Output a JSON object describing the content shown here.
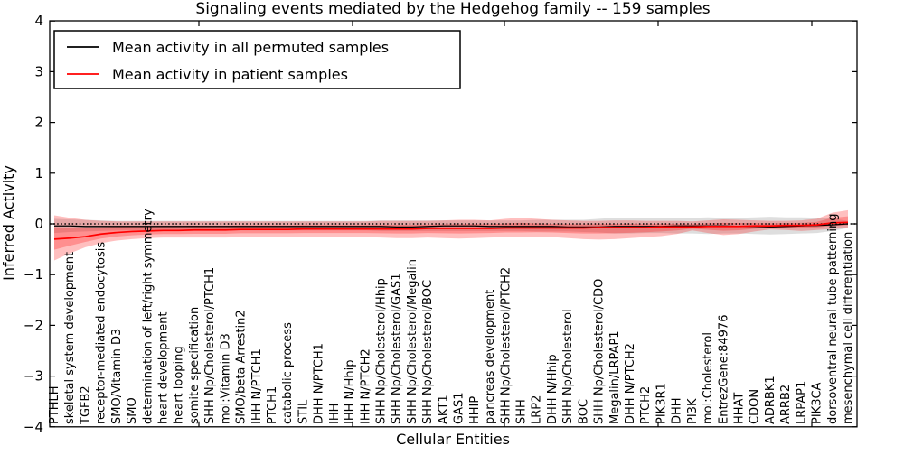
{
  "title": "Signaling events mediated by the Hedgehog family -- 159 samples",
  "axes": {
    "ylabel": "Inferred Activity",
    "xlabel": "Cellular Entities",
    "ytick_labels": [
      "4",
      "3",
      "2",
      "1",
      "0",
      "−1",
      "−2",
      "−3",
      "−4"
    ],
    "ytick_values": [
      4,
      3,
      2,
      1,
      0,
      -1,
      -2,
      -3,
      -4
    ]
  },
  "legend": {
    "items": [
      {
        "label": "Mean activity in all permuted samples",
        "color": "#000000"
      },
      {
        "label": "Mean activity in patient samples",
        "color": "#ff0000"
      }
    ]
  },
  "colors": {
    "patient_line": "#ff0000",
    "permuted_line": "#000000",
    "patient_band": "rgba(255,0,0,0.25)",
    "permuted_band": "rgba(0,0,0,0.13)",
    "zero_line": "#000000"
  },
  "chart_data": {
    "type": "line",
    "title": "Signaling events mediated by the Hedgehog family -- 159 samples",
    "xlabel": "Cellular Entities",
    "ylabel": "Inferred Activity",
    "ylim": [
      -4,
      4
    ],
    "grid": false,
    "legend_position": "upper left",
    "zero_reference_line": 0,
    "categories": [
      "PTHLH",
      "skeletal system development",
      "TGFB2",
      "receptor-mediated endocytosis",
      "SMO/Vitamin D3",
      "SMO",
      "determination of left/right symmetry",
      "heart development",
      "heart looping",
      "somite specification",
      "SHH Np/Cholesterol/PTCH1",
      "mol:Vitamin D3",
      "SMO/beta Arrestin2",
      "IHH N/PTCH1",
      "PTCH1",
      "catabolic process",
      "STIL",
      "DHH N/PTCH1",
      "IHH",
      "IHH N/Hhip",
      "IHH N/PTCH2",
      "SHH Np/Cholesterol/Hhip",
      "SHH Np/Cholesterol/GAS1",
      "SHH Np/Cholesterol/Megalin",
      "SHH Np/Cholesterol/BOC",
      "AKT1",
      "GAS1",
      "HHIP",
      "pancreas development",
      "SHH Np/Cholesterol/PTCH2",
      "SHH",
      "LRP2",
      "DHH N/Hhip",
      "SHH Np/Cholesterol",
      "BOC",
      "SHH Np/Cholesterol/CDO",
      "Megalin/LRPAP1",
      "DHH N/PTCH2",
      "PTCH2",
      "PIK3R1",
      "DHH",
      "PI3K",
      "mol:Cholesterol",
      "EntrezGene:84976",
      "HHAT",
      "CDON",
      "ADRBK1",
      "ARRB2",
      "LRPAP1",
      "PIK3CA",
      "dorsoventral neural tube patterning",
      "mesenchymal cell differentiation"
    ],
    "series": [
      {
        "name": "Mean activity in all permuted samples",
        "color": "#000000",
        "values": [
          -0.04,
          -0.04,
          -0.05,
          -0.05,
          -0.05,
          -0.05,
          -0.05,
          -0.05,
          -0.05,
          -0.05,
          -0.05,
          -0.05,
          -0.05,
          -0.05,
          -0.05,
          -0.05,
          -0.05,
          -0.05,
          -0.05,
          -0.05,
          -0.05,
          -0.05,
          -0.06,
          -0.06,
          -0.05,
          -0.04,
          -0.04,
          -0.04,
          -0.05,
          -0.05,
          -0.05,
          -0.05,
          -0.05,
          -0.06,
          -0.06,
          -0.06,
          -0.05,
          -0.05,
          -0.05,
          -0.05,
          -0.04,
          -0.04,
          -0.04,
          -0.04,
          -0.05,
          -0.05,
          -0.06,
          -0.05,
          -0.04,
          -0.03,
          -0.02,
          0.0
        ],
        "band_hi": [
          0.1,
          0.09,
          0.08,
          0.07,
          0.06,
          0.06,
          0.06,
          0.06,
          0.06,
          0.06,
          0.06,
          0.06,
          0.06,
          0.06,
          0.06,
          0.06,
          0.06,
          0.06,
          0.06,
          0.06,
          0.06,
          0.07,
          0.07,
          0.07,
          0.07,
          0.07,
          0.07,
          0.07,
          0.07,
          0.07,
          0.07,
          0.08,
          0.08,
          0.08,
          0.08,
          0.1,
          0.12,
          0.12,
          0.11,
          0.11,
          0.12,
          0.12,
          0.13,
          0.12,
          0.12,
          0.13,
          0.14,
          0.13,
          0.13,
          0.12,
          0.1,
          0.06
        ],
        "band_lo": [
          -0.18,
          -0.16,
          -0.15,
          -0.14,
          -0.13,
          -0.13,
          -0.13,
          -0.13,
          -0.13,
          -0.13,
          -0.13,
          -0.13,
          -0.13,
          -0.13,
          -0.13,
          -0.13,
          -0.13,
          -0.13,
          -0.13,
          -0.13,
          -0.13,
          -0.14,
          -0.14,
          -0.14,
          -0.14,
          -0.14,
          -0.14,
          -0.14,
          -0.14,
          -0.14,
          -0.14,
          -0.15,
          -0.15,
          -0.15,
          -0.16,
          -0.17,
          -0.19,
          -0.19,
          -0.18,
          -0.18,
          -0.19,
          -0.19,
          -0.2,
          -0.19,
          -0.19,
          -0.2,
          -0.21,
          -0.2,
          -0.19,
          -0.18,
          -0.14,
          -0.08
        ]
      },
      {
        "name": "Mean activity in patient samples",
        "color": "#ff0000",
        "values": [
          -0.3,
          -0.28,
          -0.25,
          -0.2,
          -0.17,
          -0.15,
          -0.14,
          -0.13,
          -0.13,
          -0.12,
          -0.12,
          -0.12,
          -0.11,
          -0.11,
          -0.11,
          -0.11,
          -0.1,
          -0.1,
          -0.1,
          -0.1,
          -0.1,
          -0.1,
          -0.1,
          -0.1,
          -0.09,
          -0.09,
          -0.09,
          -0.09,
          -0.09,
          -0.08,
          -0.08,
          -0.08,
          -0.08,
          -0.08,
          -0.08,
          -0.07,
          -0.07,
          -0.07,
          -0.07,
          -0.06,
          -0.06,
          -0.06,
          -0.05,
          -0.05,
          -0.05,
          -0.04,
          -0.04,
          -0.03,
          -0.03,
          -0.02,
          0.02,
          0.03
        ],
        "band_hi": [
          0.17,
          0.12,
          0.08,
          0.06,
          0.05,
          0.05,
          0.05,
          0.05,
          0.05,
          0.05,
          0.05,
          0.05,
          0.05,
          0.05,
          0.05,
          0.05,
          0.05,
          0.05,
          0.05,
          0.05,
          0.05,
          0.06,
          0.06,
          0.06,
          0.06,
          0.07,
          0.08,
          0.08,
          0.07,
          0.1,
          0.12,
          0.1,
          0.08,
          0.07,
          0.06,
          0.06,
          0.07,
          0.07,
          0.06,
          0.06,
          0.06,
          0.05,
          0.07,
          0.09,
          0.08,
          0.07,
          0.06,
          0.06,
          0.07,
          0.1,
          0.22,
          0.27
        ],
        "band_lo": [
          -0.72,
          -0.58,
          -0.46,
          -0.38,
          -0.33,
          -0.3,
          -0.28,
          -0.27,
          -0.27,
          -0.27,
          -0.27,
          -0.27,
          -0.26,
          -0.26,
          -0.26,
          -0.26,
          -0.26,
          -0.26,
          -0.26,
          -0.26,
          -0.26,
          -0.27,
          -0.28,
          -0.28,
          -0.27,
          -0.28,
          -0.29,
          -0.28,
          -0.27,
          -0.26,
          -0.26,
          -0.25,
          -0.26,
          -0.28,
          -0.3,
          -0.31,
          -0.3,
          -0.28,
          -0.26,
          -0.24,
          -0.2,
          -0.13,
          -0.18,
          -0.22,
          -0.2,
          -0.15,
          -0.11,
          -0.12,
          -0.14,
          -0.12,
          -0.1,
          -0.08
        ]
      }
    ]
  }
}
